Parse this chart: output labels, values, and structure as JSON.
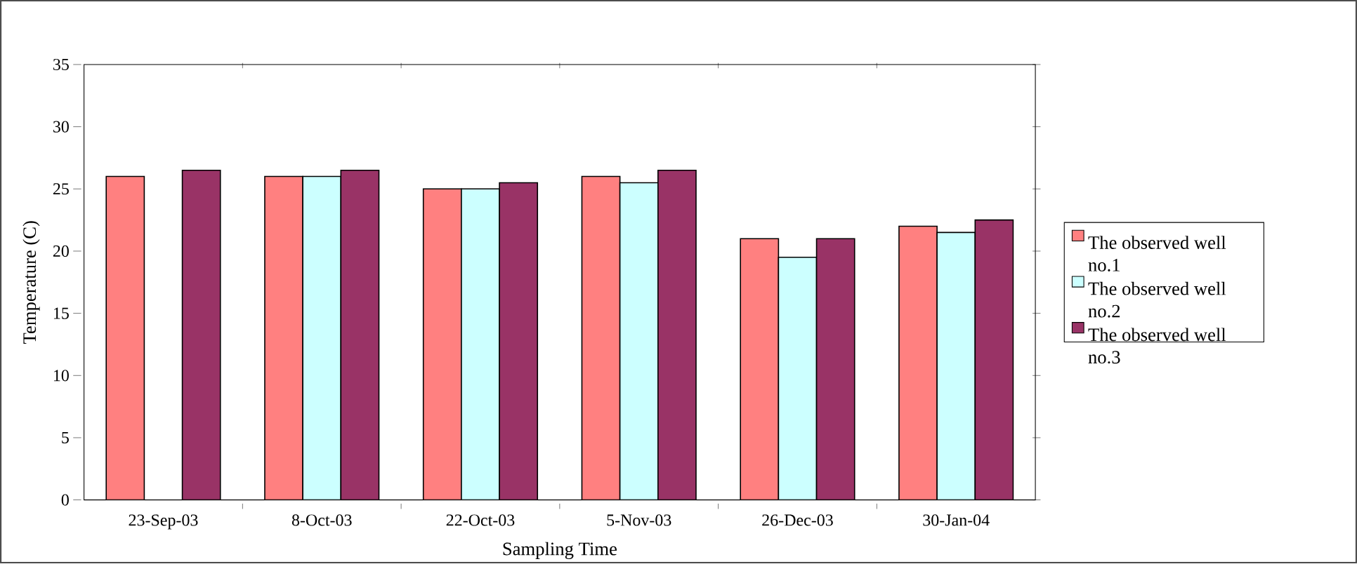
{
  "chart_data": {
    "type": "bar",
    "xlabel": "Sampling Time",
    "ylabel": "Temperature (C)",
    "categories": [
      "23-Sep-03",
      "8-Oct-03",
      "22-Oct-03",
      "5-Nov-03",
      "26-Dec-03",
      "30-Jan-04"
    ],
    "series": [
      {
        "name": "The observed well no.1",
        "color": "#ff8080",
        "values": [
          26,
          26,
          25,
          26,
          21,
          22
        ]
      },
      {
        "name": "The observed well no.2",
        "color": "#ccffff",
        "values": [
          null,
          26,
          25,
          25.5,
          19.5,
          21.5
        ]
      },
      {
        "name": "The observed well no.3",
        "color": "#993366",
        "values": [
          26.5,
          26.5,
          25.5,
          26.5,
          21,
          22.5
        ]
      }
    ],
    "ylim": [
      0,
      35
    ],
    "yticks": [
      0,
      5,
      10,
      15,
      20,
      25,
      30,
      35
    ],
    "grid": false,
    "legend": "right"
  }
}
